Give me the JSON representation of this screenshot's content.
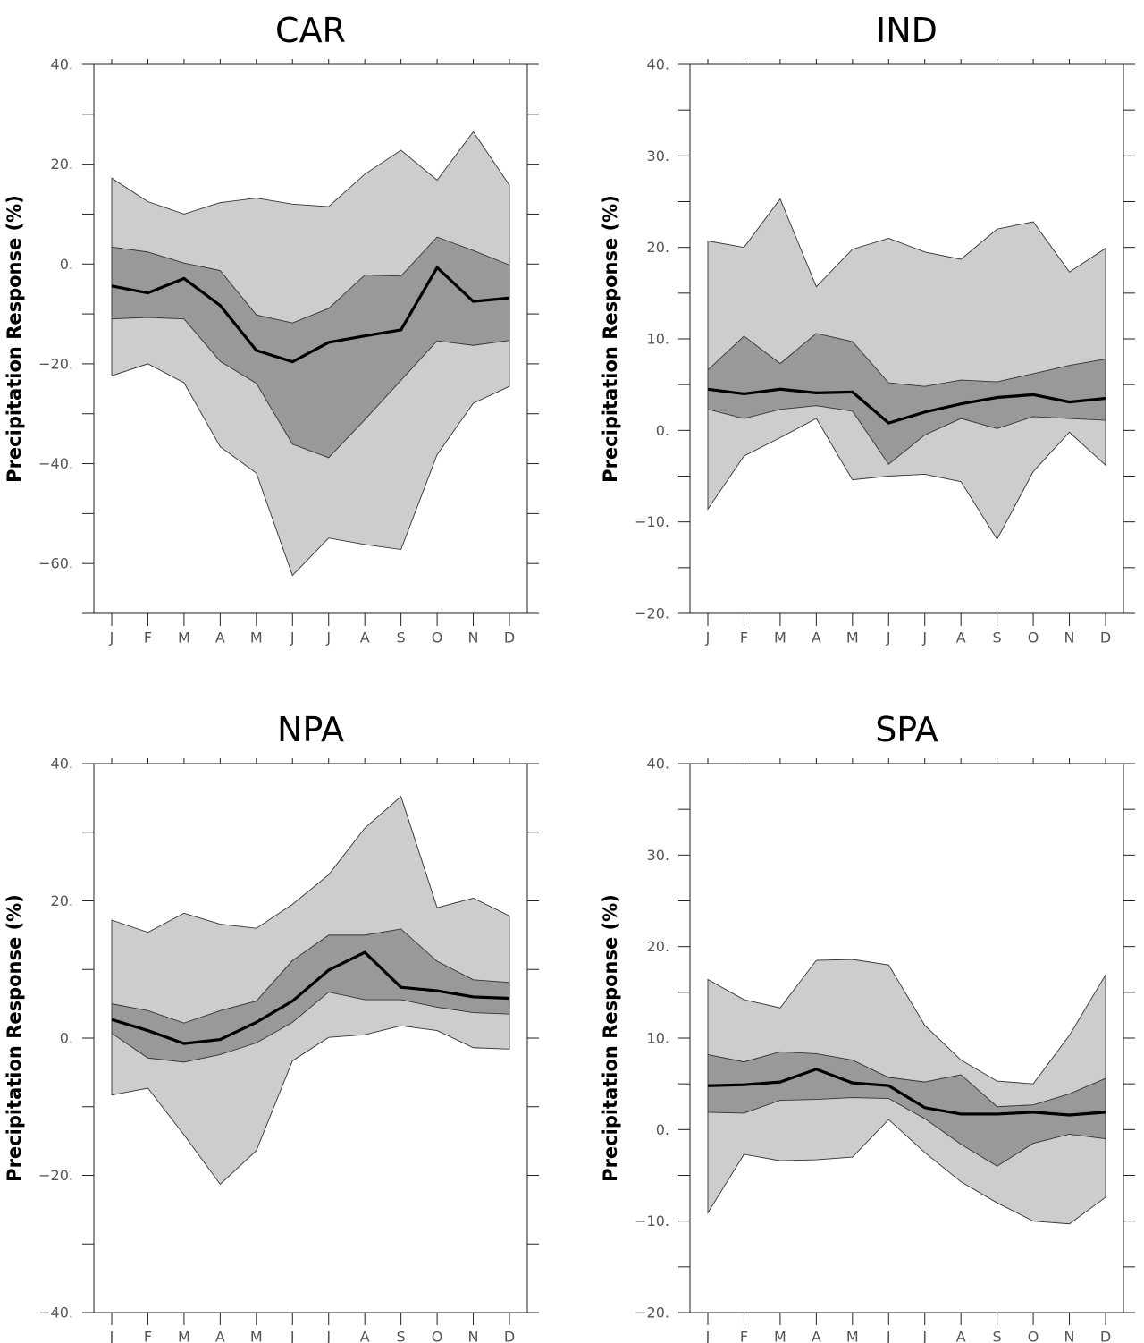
{
  "ylabel": "Precipitation Response (%)",
  "months": [
    "J",
    "F",
    "M",
    "A",
    "M",
    "J",
    "J",
    "A",
    "S",
    "O",
    "N",
    "D"
  ],
  "colors": {
    "outer_band": "#cdcdcd",
    "inner_band": "#999999",
    "median_line": "#000000",
    "band_edge": "#333333",
    "tick_text": "#555555"
  },
  "chart_data": [
    {
      "type": "area",
      "title": "CAR",
      "ylabel": "Precipitation Response (%)",
      "categories": [
        "J",
        "F",
        "M",
        "A",
        "M",
        "J",
        "J",
        "A",
        "S",
        "O",
        "N",
        "D"
      ],
      "ylim": [
        -70,
        40
      ],
      "yticks": [
        40,
        20,
        0,
        -20,
        -40,
        -60
      ],
      "ytick_labels": [
        "40.",
        "20.",
        "0.",
        "−20.",
        "−40.",
        "−60."
      ],
      "yminor_step": 10,
      "series": [
        {
          "role": "outer_upper",
          "values": [
            17.2,
            12.5,
            10,
            12.3,
            13.2,
            12,
            11.5,
            18,
            22.8,
            16.8,
            26.5,
            15.8
          ]
        },
        {
          "role": "inner_upper",
          "values": [
            3.4,
            2.4,
            0.2,
            -1.3,
            -10.2,
            -11.8,
            -8.9,
            -2.2,
            -2.4,
            5.4,
            2.7,
            -0.2
          ]
        },
        {
          "role": "median",
          "values": [
            -4.4,
            -5.8,
            -2.9,
            -8.3,
            -17.3,
            -19.6,
            -15.7,
            -14.4,
            -13.2,
            -0.7,
            -7.5,
            -6.8
          ]
        },
        {
          "role": "inner_lower",
          "values": [
            -11,
            -10.7,
            -11,
            -19.5,
            -23.9,
            -36.1,
            -38.8,
            -31.2,
            -23.3,
            -15.4,
            -16.3,
            -15.3
          ]
        },
        {
          "role": "outer_lower",
          "values": [
            -22.4,
            -20,
            -23.8,
            -36.6,
            -41.9,
            -62.4,
            -54.9,
            -56.2,
            -57.2,
            -38.2,
            -27.9,
            -24.5
          ]
        }
      ]
    },
    {
      "type": "area",
      "title": "IND",
      "ylabel": "Precipitation Response (%)",
      "categories": [
        "J",
        "F",
        "M",
        "A",
        "M",
        "J",
        "J",
        "A",
        "S",
        "O",
        "N",
        "D"
      ],
      "ylim": [
        -20,
        40
      ],
      "yticks": [
        40,
        30,
        20,
        10,
        0,
        -10,
        -20
      ],
      "ytick_labels": [
        "40.",
        "30.",
        "20.",
        "10.",
        "0.",
        "−10.",
        "−20."
      ],
      "yminor_step": 5,
      "series": [
        {
          "role": "outer_upper",
          "values": [
            20.7,
            20,
            25.3,
            15.7,
            19.8,
            21,
            19.5,
            18.7,
            22,
            22.8,
            17.3,
            19.9
          ]
        },
        {
          "role": "inner_upper",
          "values": [
            6.6,
            10.3,
            7.3,
            10.6,
            9.7,
            5.2,
            4.8,
            5.5,
            5.3,
            6.2,
            7.1,
            7.8
          ]
        },
        {
          "role": "median",
          "values": [
            4.5,
            4,
            4.5,
            4.1,
            4.2,
            0.8,
            2,
            2.9,
            3.6,
            3.9,
            3.1,
            3.5
          ]
        },
        {
          "role": "inner_lower",
          "values": [
            2.3,
            1.3,
            2.3,
            2.7,
            2.1,
            -3.7,
            -0.5,
            1.3,
            0.2,
            1.5,
            1.3,
            1.1
          ]
        },
        {
          "role": "outer_lower",
          "values": [
            -8.6,
            -2.8,
            -0.8,
            1.3,
            -5.4,
            -5,
            -4.8,
            -5.6,
            -11.9,
            -4.5,
            -0.2,
            -3.8
          ]
        }
      ]
    },
    {
      "type": "area",
      "title": "NPA",
      "ylabel": "Precipitation Response (%)",
      "categories": [
        "J",
        "F",
        "M",
        "A",
        "M",
        "J",
        "J",
        "A",
        "S",
        "O",
        "N",
        "D"
      ],
      "ylim": [
        -40,
        40
      ],
      "yticks": [
        40,
        20,
        0,
        -20,
        -40
      ],
      "ytick_labels": [
        "40.",
        "20.",
        "0.",
        "−20.",
        "−40."
      ],
      "yminor_step": 10,
      "series": [
        {
          "role": "outer_upper",
          "values": [
            17.2,
            15.4,
            18.2,
            16.6,
            16,
            19.5,
            23.8,
            30.6,
            35.2,
            19,
            20.4,
            17.8
          ]
        },
        {
          "role": "inner_upper",
          "values": [
            5,
            4,
            2.2,
            4,
            5.4,
            11.3,
            15,
            15,
            15.9,
            11.2,
            8.5,
            8.1
          ]
        },
        {
          "role": "median",
          "values": [
            2.7,
            1.1,
            -0.8,
            -0.2,
            2.3,
            5.4,
            9.9,
            12.5,
            7.4,
            6.9,
            6,
            5.8
          ]
        },
        {
          "role": "inner_lower",
          "values": [
            0.7,
            -2.9,
            -3.5,
            -2.4,
            -0.7,
            2.3,
            6.7,
            5.6,
            5.6,
            4.5,
            3.7,
            3.5
          ]
        },
        {
          "role": "outer_lower",
          "values": [
            -8.3,
            -7.3,
            -14.1,
            -21.3,
            -16.4,
            -3.3,
            0.1,
            0.5,
            1.8,
            1.1,
            -1.4,
            -1.6
          ]
        }
      ]
    },
    {
      "type": "area",
      "title": "SPA",
      "ylabel": "Precipitation Response (%)",
      "categories": [
        "J",
        "F",
        "M",
        "A",
        "M",
        "J",
        "J",
        "A",
        "S",
        "O",
        "N",
        "D"
      ],
      "ylim": [
        -20,
        40
      ],
      "yticks": [
        40,
        30,
        20,
        10,
        0,
        -10,
        -20
      ],
      "ytick_labels": [
        "40.",
        "30.",
        "20.",
        "10.",
        "0.",
        "−10.",
        "−20."
      ],
      "yminor_step": 5,
      "series": [
        {
          "role": "outer_upper",
          "values": [
            16.4,
            14.2,
            13.3,
            18.5,
            18.6,
            18,
            11.4,
            7.6,
            5.3,
            5,
            10.3,
            16.9
          ]
        },
        {
          "role": "inner_upper",
          "values": [
            8.2,
            7.4,
            8.5,
            8.3,
            7.6,
            5.7,
            5.2,
            6,
            2.5,
            2.7,
            3.9,
            5.6
          ]
        },
        {
          "role": "median",
          "values": [
            4.8,
            4.9,
            5.2,
            6.6,
            5.1,
            4.8,
            2.4,
            1.7,
            1.7,
            1.9,
            1.6,
            1.9
          ]
        },
        {
          "role": "inner_lower",
          "values": [
            1.9,
            1.8,
            3.2,
            3.3,
            3.5,
            3.4,
            1.2,
            -1.6,
            -4,
            -1.5,
            -0.5,
            -1
          ]
        },
        {
          "role": "outer_lower",
          "values": [
            -9.1,
            -2.7,
            -3.4,
            -3.3,
            -3,
            1.1,
            -2.5,
            -5.7,
            -8,
            -10,
            -10.3,
            -7.4
          ]
        }
      ]
    }
  ]
}
